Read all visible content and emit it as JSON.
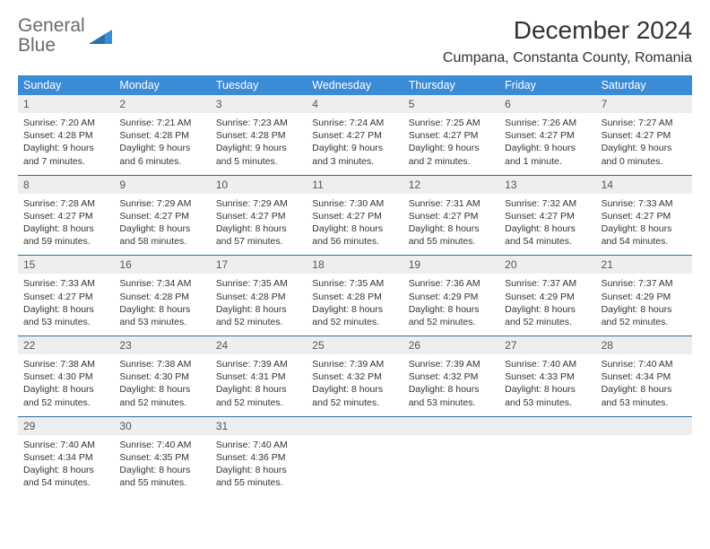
{
  "brand": {
    "word1": "General",
    "word2": "Blue"
  },
  "title": "December 2024",
  "location": "Cumpana, Constanta County, Romania",
  "colors": {
    "header_bg": "#3b8bd6",
    "header_text": "#ffffff",
    "daynum_bg": "#eeeeee",
    "rule": "#2f6fa3",
    "logo_gray": "#6a6a6a",
    "logo_blue": "#3b8bd6"
  },
  "weekdays": [
    "Sunday",
    "Monday",
    "Tuesday",
    "Wednesday",
    "Thursday",
    "Friday",
    "Saturday"
  ],
  "weeks": [
    [
      {
        "n": "1",
        "sr": "Sunrise: 7:20 AM",
        "ss": "Sunset: 4:28 PM",
        "d1": "Daylight: 9 hours",
        "d2": "and 7 minutes."
      },
      {
        "n": "2",
        "sr": "Sunrise: 7:21 AM",
        "ss": "Sunset: 4:28 PM",
        "d1": "Daylight: 9 hours",
        "d2": "and 6 minutes."
      },
      {
        "n": "3",
        "sr": "Sunrise: 7:23 AM",
        "ss": "Sunset: 4:28 PM",
        "d1": "Daylight: 9 hours",
        "d2": "and 5 minutes."
      },
      {
        "n": "4",
        "sr": "Sunrise: 7:24 AM",
        "ss": "Sunset: 4:27 PM",
        "d1": "Daylight: 9 hours",
        "d2": "and 3 minutes."
      },
      {
        "n": "5",
        "sr": "Sunrise: 7:25 AM",
        "ss": "Sunset: 4:27 PM",
        "d1": "Daylight: 9 hours",
        "d2": "and 2 minutes."
      },
      {
        "n": "6",
        "sr": "Sunrise: 7:26 AM",
        "ss": "Sunset: 4:27 PM",
        "d1": "Daylight: 9 hours",
        "d2": "and 1 minute."
      },
      {
        "n": "7",
        "sr": "Sunrise: 7:27 AM",
        "ss": "Sunset: 4:27 PM",
        "d1": "Daylight: 9 hours",
        "d2": "and 0 minutes."
      }
    ],
    [
      {
        "n": "8",
        "sr": "Sunrise: 7:28 AM",
        "ss": "Sunset: 4:27 PM",
        "d1": "Daylight: 8 hours",
        "d2": "and 59 minutes."
      },
      {
        "n": "9",
        "sr": "Sunrise: 7:29 AM",
        "ss": "Sunset: 4:27 PM",
        "d1": "Daylight: 8 hours",
        "d2": "and 58 minutes."
      },
      {
        "n": "10",
        "sr": "Sunrise: 7:29 AM",
        "ss": "Sunset: 4:27 PM",
        "d1": "Daylight: 8 hours",
        "d2": "and 57 minutes."
      },
      {
        "n": "11",
        "sr": "Sunrise: 7:30 AM",
        "ss": "Sunset: 4:27 PM",
        "d1": "Daylight: 8 hours",
        "d2": "and 56 minutes."
      },
      {
        "n": "12",
        "sr": "Sunrise: 7:31 AM",
        "ss": "Sunset: 4:27 PM",
        "d1": "Daylight: 8 hours",
        "d2": "and 55 minutes."
      },
      {
        "n": "13",
        "sr": "Sunrise: 7:32 AM",
        "ss": "Sunset: 4:27 PM",
        "d1": "Daylight: 8 hours",
        "d2": "and 54 minutes."
      },
      {
        "n": "14",
        "sr": "Sunrise: 7:33 AM",
        "ss": "Sunset: 4:27 PM",
        "d1": "Daylight: 8 hours",
        "d2": "and 54 minutes."
      }
    ],
    [
      {
        "n": "15",
        "sr": "Sunrise: 7:33 AM",
        "ss": "Sunset: 4:27 PM",
        "d1": "Daylight: 8 hours",
        "d2": "and 53 minutes."
      },
      {
        "n": "16",
        "sr": "Sunrise: 7:34 AM",
        "ss": "Sunset: 4:28 PM",
        "d1": "Daylight: 8 hours",
        "d2": "and 53 minutes."
      },
      {
        "n": "17",
        "sr": "Sunrise: 7:35 AM",
        "ss": "Sunset: 4:28 PM",
        "d1": "Daylight: 8 hours",
        "d2": "and 52 minutes."
      },
      {
        "n": "18",
        "sr": "Sunrise: 7:35 AM",
        "ss": "Sunset: 4:28 PM",
        "d1": "Daylight: 8 hours",
        "d2": "and 52 minutes."
      },
      {
        "n": "19",
        "sr": "Sunrise: 7:36 AM",
        "ss": "Sunset: 4:29 PM",
        "d1": "Daylight: 8 hours",
        "d2": "and 52 minutes."
      },
      {
        "n": "20",
        "sr": "Sunrise: 7:37 AM",
        "ss": "Sunset: 4:29 PM",
        "d1": "Daylight: 8 hours",
        "d2": "and 52 minutes."
      },
      {
        "n": "21",
        "sr": "Sunrise: 7:37 AM",
        "ss": "Sunset: 4:29 PM",
        "d1": "Daylight: 8 hours",
        "d2": "and 52 minutes."
      }
    ],
    [
      {
        "n": "22",
        "sr": "Sunrise: 7:38 AM",
        "ss": "Sunset: 4:30 PM",
        "d1": "Daylight: 8 hours",
        "d2": "and 52 minutes."
      },
      {
        "n": "23",
        "sr": "Sunrise: 7:38 AM",
        "ss": "Sunset: 4:30 PM",
        "d1": "Daylight: 8 hours",
        "d2": "and 52 minutes."
      },
      {
        "n": "24",
        "sr": "Sunrise: 7:39 AM",
        "ss": "Sunset: 4:31 PM",
        "d1": "Daylight: 8 hours",
        "d2": "and 52 minutes."
      },
      {
        "n": "25",
        "sr": "Sunrise: 7:39 AM",
        "ss": "Sunset: 4:32 PM",
        "d1": "Daylight: 8 hours",
        "d2": "and 52 minutes."
      },
      {
        "n": "26",
        "sr": "Sunrise: 7:39 AM",
        "ss": "Sunset: 4:32 PM",
        "d1": "Daylight: 8 hours",
        "d2": "and 53 minutes."
      },
      {
        "n": "27",
        "sr": "Sunrise: 7:40 AM",
        "ss": "Sunset: 4:33 PM",
        "d1": "Daylight: 8 hours",
        "d2": "and 53 minutes."
      },
      {
        "n": "28",
        "sr": "Sunrise: 7:40 AM",
        "ss": "Sunset: 4:34 PM",
        "d1": "Daylight: 8 hours",
        "d2": "and 53 minutes."
      }
    ],
    [
      {
        "n": "29",
        "sr": "Sunrise: 7:40 AM",
        "ss": "Sunset: 4:34 PM",
        "d1": "Daylight: 8 hours",
        "d2": "and 54 minutes."
      },
      {
        "n": "30",
        "sr": "Sunrise: 7:40 AM",
        "ss": "Sunset: 4:35 PM",
        "d1": "Daylight: 8 hours",
        "d2": "and 55 minutes."
      },
      {
        "n": "31",
        "sr": "Sunrise: 7:40 AM",
        "ss": "Sunset: 4:36 PM",
        "d1": "Daylight: 8 hours",
        "d2": "and 55 minutes."
      },
      {
        "n": "",
        "sr": "",
        "ss": "",
        "d1": "",
        "d2": "",
        "empty": true
      },
      {
        "n": "",
        "sr": "",
        "ss": "",
        "d1": "",
        "d2": "",
        "empty": true
      },
      {
        "n": "",
        "sr": "",
        "ss": "",
        "d1": "",
        "d2": "",
        "empty": true
      },
      {
        "n": "",
        "sr": "",
        "ss": "",
        "d1": "",
        "d2": "",
        "empty": true
      }
    ]
  ]
}
